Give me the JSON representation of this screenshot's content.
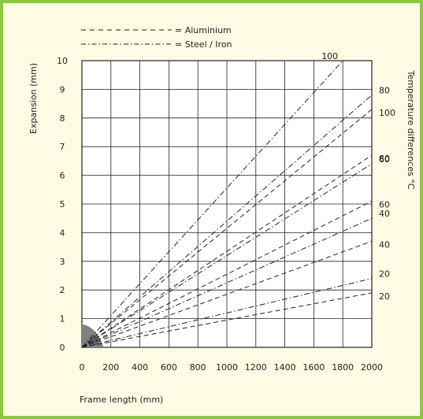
{
  "chart_data": {
    "type": "line",
    "title": "",
    "xlabel": "Frame length (mm)",
    "ylabel": "Expansion (mm)",
    "right_axis_label": "Temperature differences °C",
    "xlim": [
      0,
      2000
    ],
    "ylim": [
      0,
      10
    ],
    "x_ticks": [
      "0",
      "200",
      "400",
      "600",
      "800",
      "1000",
      "1200",
      "1400",
      "1600",
      "1800",
      "2000"
    ],
    "y_ticks": [
      "0",
      "1",
      "2",
      "3",
      "4",
      "5",
      "6",
      "7",
      "8",
      "9",
      "10"
    ],
    "grid": true,
    "legend": {
      "placement": "top-left",
      "items": [
        {
          "label": "= Aluminium",
          "style": "dashed"
        },
        {
          "label": "= Steel / Iron",
          "style": "dash-dot"
        }
      ]
    },
    "series": [
      {
        "material": "Aluminium",
        "style": "dashed",
        "temp_label": "20",
        "x": [
          0,
          2000
        ],
        "y": [
          0,
          1.9
        ]
      },
      {
        "material": "Aluminium",
        "style": "dashed",
        "temp_label": "40",
        "x": [
          0,
          2000
        ],
        "y": [
          0,
          3.7
        ]
      },
      {
        "material": "Aluminium",
        "style": "dashed",
        "temp_label": "60",
        "x": [
          0,
          2000
        ],
        "y": [
          0,
          5.1
        ]
      },
      {
        "material": "Aluminium",
        "style": "dashed",
        "temp_label": "80",
        "x": [
          0,
          2000
        ],
        "y": [
          0,
          6.7
        ]
      },
      {
        "material": "Aluminium",
        "style": "dashed",
        "temp_label": "100",
        "x": [
          0,
          2000
        ],
        "y": [
          0,
          8.3
        ]
      },
      {
        "material": "Steel / Iron",
        "style": "dash-dot",
        "temp_label": "20",
        "x": [
          0,
          2000
        ],
        "y": [
          0,
          2.4
        ]
      },
      {
        "material": "Steel / Iron",
        "style": "dash-dot",
        "temp_label": "40",
        "x": [
          0,
          2000
        ],
        "y": [
          0,
          4.5
        ]
      },
      {
        "material": "Steel / Iron",
        "style": "dash-dot",
        "temp_label": "60",
        "x": [
          0,
          2000
        ],
        "y": [
          0,
          6.4
        ]
      },
      {
        "material": "Steel / Iron",
        "style": "dash-dot",
        "temp_label": "80",
        "x": [
          0,
          2000
        ],
        "y": [
          0,
          8.8
        ]
      },
      {
        "material": "Steel / Iron",
        "style": "dash-dot",
        "temp_label": "100",
        "x": [
          0,
          1800
        ],
        "y": [
          0,
          10
        ]
      }
    ]
  }
}
